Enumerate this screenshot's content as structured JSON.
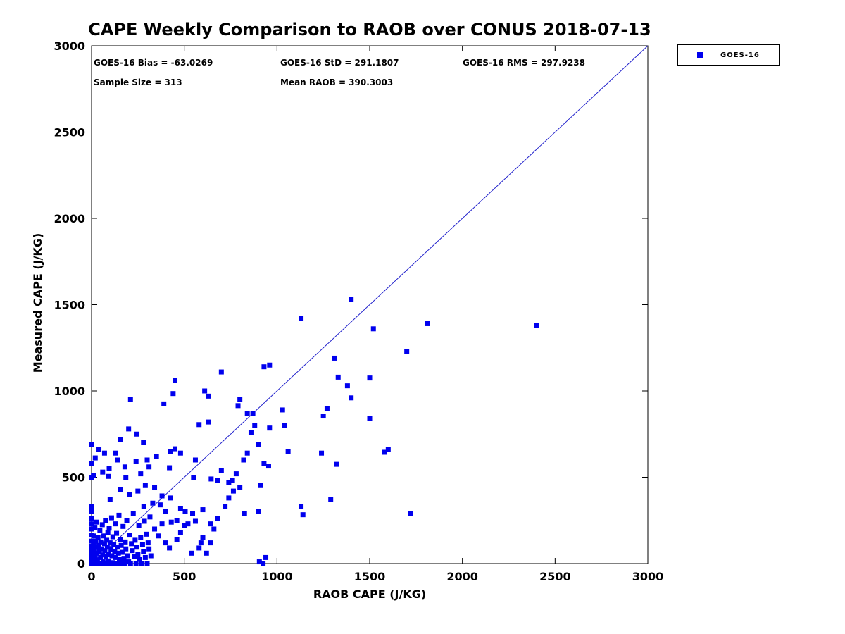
{
  "figure": {
    "title": "CAPE Weekly Comparison to RAOB over CONUS 2018-07-13",
    "annotations": {
      "bias": "GOES-16 Bias = -63.0269",
      "std": "GOES-16 StD = 291.1807",
      "rms": "GOES-16 RMS = 297.9238",
      "sample_size": "Sample Size = 313",
      "mean_raob": "Mean RAOB = 390.3003"
    },
    "legend": {
      "label": "GOES-16",
      "marker_color": "#0000ee"
    }
  },
  "chart_data": {
    "type": "scatter",
    "title": "CAPE Weekly Comparison to RAOB over CONUS 2018-07-13",
    "xlabel": "RAOB CAPE (J/KG)",
    "ylabel": "Measured CAPE (J/KG)",
    "xlim": [
      0,
      3000
    ],
    "ylim": [
      0,
      3000
    ],
    "xticks": [
      0,
      500,
      1000,
      1500,
      2000,
      2500,
      3000
    ],
    "yticks": [
      0,
      500,
      1000,
      1500,
      2000,
      2500,
      3000
    ],
    "grid": false,
    "legend_position": "top-right-outside",
    "stats": {
      "bias": -63.0269,
      "std": 291.1807,
      "rms": 297.9238,
      "sample_size": 313,
      "mean_raob": 390.3003
    },
    "reference_line": {
      "from": [
        0,
        0
      ],
      "to": [
        3000,
        3000
      ],
      "color": "#2222cc",
      "width": 1
    },
    "series": [
      {
        "name": "GOES-16",
        "marker": "square",
        "color": "#0000ee",
        "points": [
          [
            1400,
            1530
          ],
          [
            1130,
            1420
          ],
          [
            1810,
            1390
          ],
          [
            2400,
            1380
          ],
          [
            1520,
            1360
          ],
          [
            1700,
            1230
          ],
          [
            1310,
            1190
          ],
          [
            960,
            1150
          ],
          [
            930,
            1140
          ],
          [
            700,
            1110
          ],
          [
            1330,
            1080
          ],
          [
            1500,
            1075
          ],
          [
            450,
            1060
          ],
          [
            1380,
            1030
          ],
          [
            610,
            1000
          ],
          [
            440,
            985
          ],
          [
            210,
            950
          ],
          [
            800,
            950
          ],
          [
            630,
            970
          ],
          [
            790,
            915
          ],
          [
            390,
            925
          ],
          [
            1400,
            960
          ],
          [
            1270,
            900
          ],
          [
            1030,
            890
          ],
          [
            870,
            870
          ],
          [
            1250,
            855
          ],
          [
            1500,
            840
          ],
          [
            1040,
            800
          ],
          [
            630,
            820
          ],
          [
            580,
            805
          ],
          [
            960,
            785
          ],
          [
            200,
            780
          ],
          [
            155,
            720
          ],
          [
            245,
            750
          ],
          [
            280,
            700
          ],
          [
            900,
            690
          ],
          [
            0,
            690
          ],
          [
            1060,
            650
          ],
          [
            1240,
            640
          ],
          [
            1600,
            660
          ],
          [
            1580,
            645
          ],
          [
            450,
            665
          ],
          [
            425,
            650
          ],
          [
            480,
            640
          ],
          [
            130,
            640
          ],
          [
            350,
            620
          ],
          [
            560,
            600
          ],
          [
            20,
            612
          ],
          [
            0,
            580
          ],
          [
            930,
            580
          ],
          [
            955,
            565
          ],
          [
            1320,
            575
          ],
          [
            180,
            560
          ],
          [
            420,
            555
          ],
          [
            95,
            550
          ],
          [
            700,
            540
          ],
          [
            60,
            530
          ],
          [
            265,
            520
          ],
          [
            10,
            512
          ],
          [
            0,
            500
          ],
          [
            90,
            505
          ],
          [
            185,
            500
          ],
          [
            550,
            500
          ],
          [
            645,
            490
          ],
          [
            680,
            480
          ],
          [
            740,
            468
          ],
          [
            800,
            440
          ],
          [
            910,
            452
          ],
          [
            290,
            452
          ],
          [
            340,
            440
          ],
          [
            155,
            430
          ],
          [
            250,
            420
          ],
          [
            765,
            420
          ],
          [
            205,
            400
          ],
          [
            380,
            392
          ],
          [
            425,
            380
          ],
          [
            100,
            372
          ],
          [
            1290,
            370
          ],
          [
            1130,
            330
          ],
          [
            1140,
            283
          ],
          [
            900,
            300
          ],
          [
            825,
            290
          ],
          [
            1720,
            290
          ],
          [
            330,
            350
          ],
          [
            370,
            340
          ],
          [
            282,
            330
          ],
          [
            480,
            318
          ],
          [
            505,
            300
          ],
          [
            545,
            290
          ],
          [
            600,
            312
          ],
          [
            460,
            140
          ],
          [
            590,
            120
          ],
          [
            905,
            10
          ],
          [
            925,
            0
          ],
          [
            940,
            35
          ],
          [
            540,
            60
          ],
          [
            620,
            60
          ],
          [
            660,
            200
          ],
          [
            680,
            260
          ],
          [
            720,
            330
          ],
          [
            740,
            380
          ],
          [
            430,
            240
          ],
          [
            520,
            230
          ],
          [
            560,
            245
          ],
          [
            640,
            230
          ],
          [
            360,
            160
          ],
          [
            400,
            120
          ],
          [
            340,
            200
          ],
          [
            380,
            230
          ],
          [
            400,
            300
          ],
          [
            420,
            90
          ],
          [
            460,
            250
          ],
          [
            480,
            180
          ],
          [
            500,
            220
          ],
          [
            580,
            90
          ],
          [
            600,
            150
          ],
          [
            640,
            120
          ],
          [
            840,
            640
          ],
          [
            820,
            600
          ],
          [
            760,
            480
          ],
          [
            780,
            520
          ],
          [
            860,
            760
          ],
          [
            880,
            800
          ],
          [
            840,
            870
          ],
          [
            300,
            600
          ],
          [
            310,
            560
          ],
          [
            240,
            590
          ],
          [
            140,
            600
          ],
          [
            70,
            640
          ],
          [
            40,
            660
          ],
          [
            0,
            230
          ],
          [
            0,
            300
          ],
          [
            0,
            330
          ],
          [
            0,
            0
          ],
          [
            0,
            15
          ],
          [
            0,
            40
          ],
          [
            0,
            70
          ],
          [
            0,
            100
          ],
          [
            0,
            130
          ],
          [
            0,
            165
          ],
          [
            0,
            200
          ],
          [
            0,
            260
          ],
          [
            8,
            0
          ],
          [
            8,
            55
          ],
          [
            10,
            110
          ],
          [
            12,
            25
          ],
          [
            12,
            160
          ],
          [
            15,
            0
          ],
          [
            15,
            80
          ],
          [
            18,
            210
          ],
          [
            20,
            45
          ],
          [
            22,
            130
          ],
          [
            25,
            0
          ],
          [
            25,
            95
          ],
          [
            28,
            240
          ],
          [
            30,
            60
          ],
          [
            32,
            20
          ],
          [
            35,
            150
          ],
          [
            38,
            0
          ],
          [
            40,
            105
          ],
          [
            42,
            70
          ],
          [
            45,
            190
          ],
          [
            48,
            35
          ],
          [
            50,
            0
          ],
          [
            50,
            125
          ],
          [
            55,
            85
          ],
          [
            58,
            225
          ],
          [
            60,
            50
          ],
          [
            62,
            10
          ],
          [
            65,
            160
          ],
          [
            68,
            0
          ],
          [
            70,
            115
          ],
          [
            72,
            75
          ],
          [
            75,
            250
          ],
          [
            78,
            40
          ],
          [
            80,
            0
          ],
          [
            82,
            135
          ],
          [
            85,
            95
          ],
          [
            88,
            180
          ],
          [
            90,
            55
          ],
          [
            92,
            15
          ],
          [
            95,
            205
          ],
          [
            98,
            0
          ],
          [
            100,
            120
          ],
          [
            105,
            80
          ],
          [
            108,
            265
          ],
          [
            110,
            45
          ],
          [
            112,
            5
          ],
          [
            115,
            155
          ],
          [
            118,
            0
          ],
          [
            120,
            110
          ],
          [
            125,
            70
          ],
          [
            128,
            230
          ],
          [
            130,
            35
          ],
          [
            135,
            175
          ],
          [
            138,
            0
          ],
          [
            140,
            95
          ],
          [
            145,
            60
          ],
          [
            148,
            280
          ],
          [
            150,
            25
          ],
          [
            155,
            140
          ],
          [
            158,
            0
          ],
          [
            160,
            105
          ],
          [
            165,
            65
          ],
          [
            170,
            215
          ],
          [
            175,
            30
          ],
          [
            180,
            0
          ],
          [
            182,
            125
          ],
          [
            185,
            85
          ],
          [
            190,
            250
          ],
          [
            195,
            45
          ],
          [
            200,
            10
          ],
          [
            205,
            165
          ],
          [
            210,
            0
          ],
          [
            215,
            115
          ],
          [
            220,
            75
          ],
          [
            225,
            290
          ],
          [
            230,
            40
          ],
          [
            235,
            135
          ],
          [
            240,
            0
          ],
          [
            245,
            95
          ],
          [
            250,
            55
          ],
          [
            255,
            220
          ],
          [
            260,
            25
          ],
          [
            265,
            150
          ],
          [
            270,
            0
          ],
          [
            275,
            110
          ],
          [
            280,
            70
          ],
          [
            285,
            245
          ],
          [
            290,
            35
          ],
          [
            295,
            170
          ],
          [
            300,
            0
          ],
          [
            305,
            120
          ],
          [
            310,
            85
          ],
          [
            315,
            270
          ],
          [
            320,
            45
          ]
        ]
      }
    ]
  }
}
